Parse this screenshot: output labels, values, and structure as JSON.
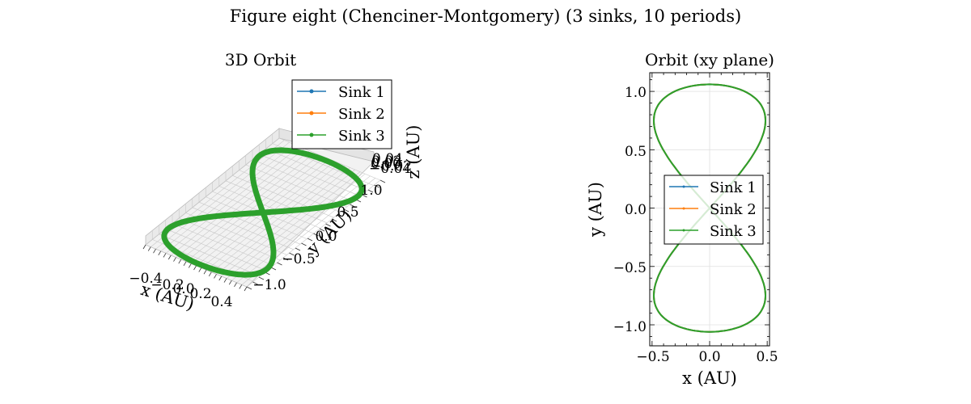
{
  "figure": {
    "title": "Figure eight (Chenciner-Montgomery) (3 sinks, 10 periods)"
  },
  "colors": {
    "sink1": "#1f77b4",
    "sink2": "#ff7f0e",
    "sink3": "#2ca02c",
    "grid": "#cccccc",
    "pane": "#f2f2f2"
  },
  "legend": {
    "entries": [
      "Sink 1",
      "Sink 2",
      "Sink 3"
    ]
  },
  "chart_data": [
    {
      "type": "line",
      "projection": "3d",
      "title": "3D Orbit",
      "xlabel": "x (AU)",
      "ylabel": "y (AU)",
      "zlabel": "z (AU)",
      "xticks": [
        "−0.4",
        "−0.2",
        "0.0",
        "0.2",
        "0.4"
      ],
      "yticks": [
        "−1.0",
        "−0.5",
        "0.0",
        "0.5",
        "1.0"
      ],
      "zticks": [
        "−0.04",
        "−0.02",
        "0.00",
        "0.02",
        "0.04"
      ],
      "xlim": [
        -0.5,
        0.5
      ],
      "ylim": [
        -1.1,
        1.1
      ],
      "zlim": [
        -0.05,
        0.05
      ],
      "legend_position": "upper-right",
      "grid": true,
      "curve": "figure-eight: x = 0.485 sin(t), y = 1.06 sin(2t)/2 scaled, z = 0",
      "series": [
        {
          "name": "Sink 1",
          "color": "#1f77b4"
        },
        {
          "name": "Sink 2",
          "color": "#ff7f0e"
        },
        {
          "name": "Sink 3",
          "color": "#2ca02c"
        }
      ]
    },
    {
      "type": "line",
      "title": "Orbit (xy plane)",
      "xlabel": "x (AU)",
      "ylabel": "y (AU)",
      "xticks": [
        "−0.5",
        "0.0",
        "0.5"
      ],
      "xtick_values": [
        -0.5,
        0.0,
        0.5
      ],
      "yticks": [
        "−1.0",
        "−0.5",
        "0.0",
        "0.5",
        "1.0"
      ],
      "ytick_values": [
        -1.0,
        -0.5,
        0.0,
        0.5,
        1.0
      ],
      "xlim": [
        -0.52,
        0.52
      ],
      "ylim": [
        -1.18,
        1.16
      ],
      "legend_position": "center-right",
      "grid": true,
      "amplitude_x": 0.485,
      "amplitude_y": 1.06,
      "series": [
        {
          "name": "Sink 1",
          "color": "#1f77b4"
        },
        {
          "name": "Sink 2",
          "color": "#ff7f0e"
        },
        {
          "name": "Sink 3",
          "color": "#2ca02c"
        }
      ]
    }
  ]
}
